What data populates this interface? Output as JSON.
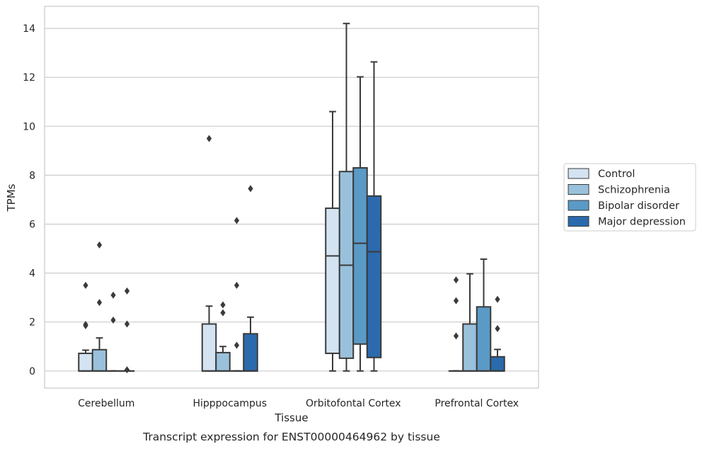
{
  "chart_data": {
    "type": "box",
    "title": "",
    "caption": "Transcript expression for ENST00000464962 by tissue",
    "xlabel": "Tissue",
    "ylabel": "TPMs",
    "ylim": [
      -0.7,
      14.9
    ],
    "yticks": [
      0,
      2,
      4,
      6,
      8,
      10,
      12,
      14
    ],
    "grid": "horizontal",
    "legend_position": "right",
    "categories": [
      "Cerebellum",
      "Hipppocampus",
      "Orbitofontal Cortex",
      "Prefrontal Cortex"
    ],
    "series": [
      {
        "name": "Control",
        "color": "#d3e3f2",
        "boxes": [
          {
            "q1": 0,
            "median": 0,
            "q3": 0.72,
            "whisker_low": 0,
            "whisker_high": 0.85,
            "outliers": [
              3.5,
              1.9,
              1.85
            ]
          },
          {
            "q1": 0,
            "median": 0,
            "q3": 1.92,
            "whisker_low": 0,
            "whisker_high": 2.65,
            "outliers": [
              9.5
            ]
          },
          {
            "q1": 0.72,
            "median": 4.7,
            "q3": 6.65,
            "whisker_low": 0,
            "whisker_high": 10.6,
            "outliers": []
          },
          {
            "q1": 0,
            "median": 0,
            "q3": 0,
            "whisker_low": 0,
            "whisker_high": 0,
            "outliers": [
              3.72,
              2.87,
              1.43
            ]
          }
        ]
      },
      {
        "name": "Schizophrenia",
        "color": "#9ac1dc",
        "boxes": [
          {
            "q1": 0,
            "median": 0,
            "q3": 0.87,
            "whisker_low": 0,
            "whisker_high": 1.35,
            "outliers": [
              5.15,
              2.8
            ]
          },
          {
            "q1": 0,
            "median": 0,
            "q3": 0.75,
            "whisker_low": 0,
            "whisker_high": 1.0,
            "outliers": [
              2.7,
              2.38
            ]
          },
          {
            "q1": 0.52,
            "median": 4.32,
            "q3": 8.15,
            "whisker_low": 0,
            "whisker_high": 14.2,
            "outliers": []
          },
          {
            "q1": 0,
            "median": 0,
            "q3": 1.92,
            "whisker_low": 0,
            "whisker_high": 3.97,
            "outliers": []
          }
        ]
      },
      {
        "name": "Bipolar disorder",
        "color": "#5a9ac6",
        "boxes": [
          {
            "q1": 0,
            "median": 0,
            "q3": 0,
            "whisker_low": 0,
            "whisker_high": 0,
            "outliers": [
              3.1,
              2.08
            ]
          },
          {
            "q1": 0,
            "median": 0,
            "q3": 0,
            "whisker_low": 0,
            "whisker_high": 0,
            "outliers": [
              6.15,
              3.5,
              1.05
            ]
          },
          {
            "q1": 1.1,
            "median": 5.22,
            "q3": 8.3,
            "whisker_low": 0,
            "whisker_high": 12.02,
            "outliers": []
          },
          {
            "q1": 0,
            "median": 0,
            "q3": 2.62,
            "whisker_low": 0,
            "whisker_high": 4.57,
            "outliers": []
          }
        ]
      },
      {
        "name": "Major depression",
        "color": "#2a6aad",
        "boxes": [
          {
            "q1": 0,
            "median": 0,
            "q3": 0,
            "whisker_low": 0,
            "whisker_high": 0,
            "outliers": [
              3.27,
              1.92,
              0.05
            ]
          },
          {
            "q1": 0,
            "median": 0,
            "q3": 1.52,
            "whisker_low": 0,
            "whisker_high": 2.2,
            "outliers": [
              7.45
            ]
          },
          {
            "q1": 0.55,
            "median": 4.87,
            "q3": 7.15,
            "whisker_low": 0,
            "whisker_high": 12.63,
            "outliers": []
          },
          {
            "q1": 0,
            "median": 0,
            "q3": 0.58,
            "whisker_low": 0,
            "whisker_high": 0.88,
            "outliers": [
              2.93,
              1.73
            ]
          }
        ]
      }
    ]
  }
}
